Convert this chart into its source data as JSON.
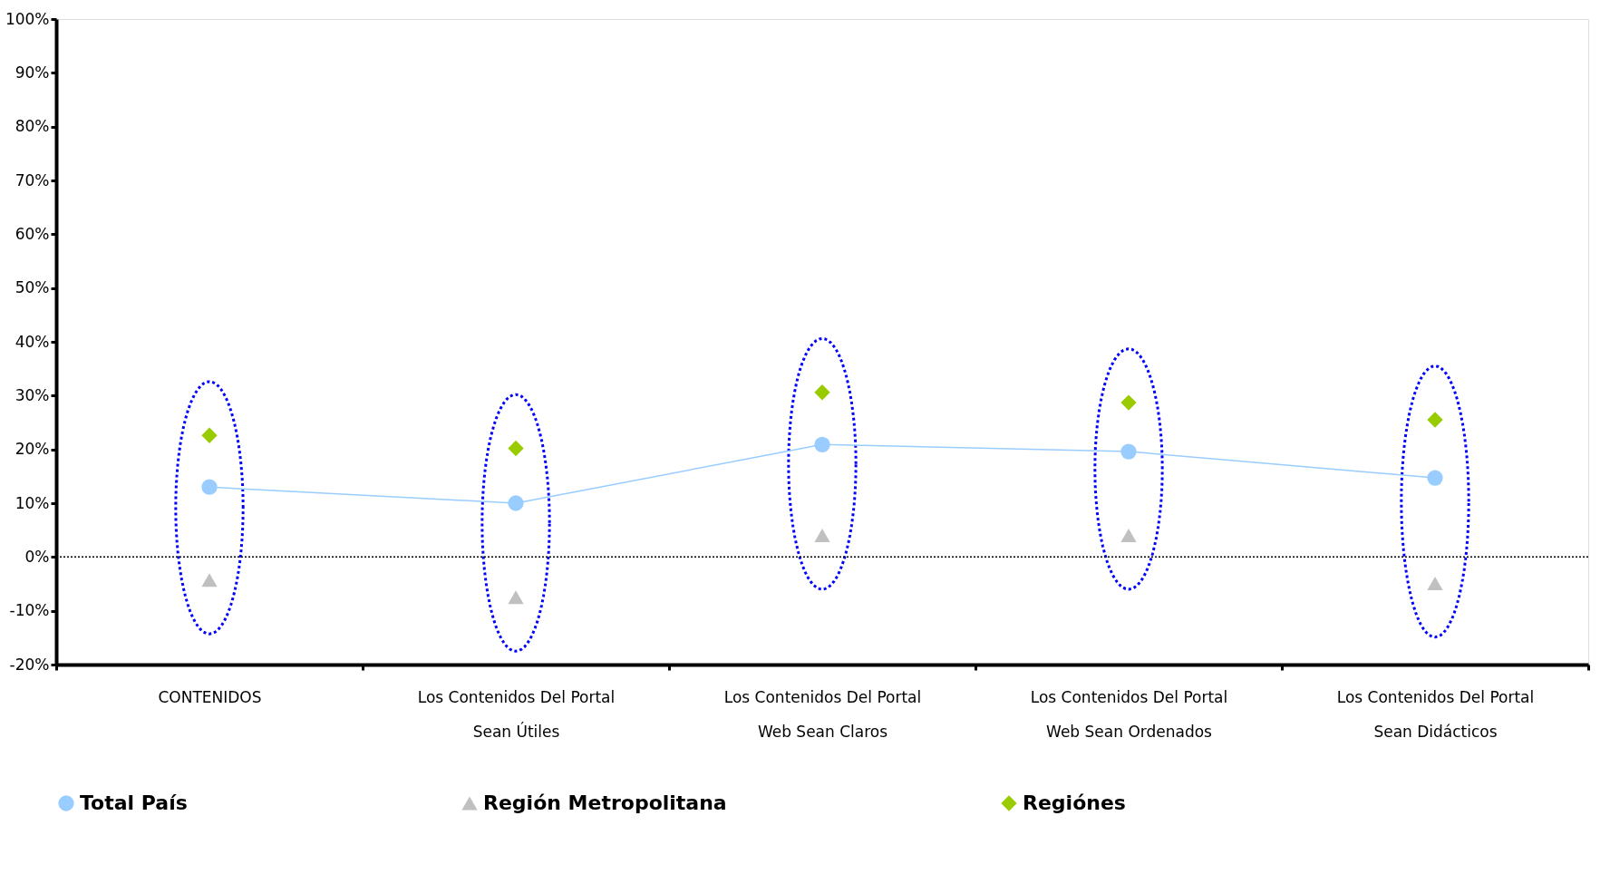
{
  "chart_data": {
    "type": "line",
    "categories": [
      "CONTENIDOS",
      "Los Contenidos Del Portal Sean Útiles",
      "Los Contenidos Del Portal Web Sean Claros",
      "Los Contenidos Del Portal Web Sean Ordenados",
      "Los Contenidos Del Portal Sean Didácticos"
    ],
    "series": [
      {
        "name": "Total País",
        "marker": "circle",
        "color": "#99ccff",
        "values": [
          13.0,
          10.0,
          20.9,
          19.6,
          14.7
        ]
      },
      {
        "name": "Región Metropolitana",
        "type": "scatter",
        "marker": "triangle",
        "color": "#c0c0c0",
        "values": [
          -4.3,
          -7.5,
          4.0,
          4.0,
          -4.9
        ]
      },
      {
        "name": "Regiónes",
        "type": "scatter",
        "marker": "diamond",
        "color": "#99cc00",
        "values": [
          22.6,
          20.2,
          30.6,
          28.7,
          25.5
        ]
      }
    ],
    "ylim": [
      -20,
      100
    ],
    "yticks": [
      {
        "value": -20,
        "label": "-20%"
      },
      {
        "value": -10,
        "label": "-10%"
      },
      {
        "value": 0,
        "label": "0%"
      },
      {
        "value": 10,
        "label": "10%"
      },
      {
        "value": 20,
        "label": "20%"
      },
      {
        "value": 30,
        "label": "30%"
      },
      {
        "value": 40,
        "label": "40%"
      },
      {
        "value": 50,
        "label": "50%"
      },
      {
        "value": 60,
        "label": "60%"
      },
      {
        "value": 70,
        "label": "70%"
      },
      {
        "value": 80,
        "label": "80%"
      },
      {
        "value": 90,
        "label": "90%"
      },
      {
        "value": 100,
        "label": "100%"
      }
    ],
    "ref_lines": [
      {
        "axis": "y",
        "value": 0,
        "color": "#000000",
        "line_style": "dotted"
      }
    ],
    "grid": false,
    "legend": "bottom"
  }
}
